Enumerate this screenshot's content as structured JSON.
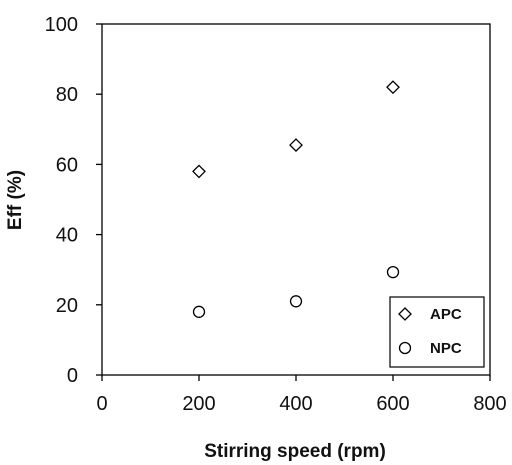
{
  "chart_data": {
    "type": "scatter",
    "xlabel": "Stirring speed (rpm)",
    "ylabel": "Eff (%)",
    "xlim": [
      0,
      800
    ],
    "ylim": [
      0,
      100
    ],
    "xticks": [
      0,
      200,
      400,
      600,
      800
    ],
    "yticks": [
      0,
      20,
      40,
      60,
      80,
      100
    ],
    "grid": false,
    "legend_position": "bottom-right",
    "series": [
      {
        "name": "APC",
        "marker": "diamond",
        "x": [
          200,
          400,
          600
        ],
        "y": [
          58,
          65.5,
          82
        ]
      },
      {
        "name": "NPC",
        "marker": "circle",
        "x": [
          200,
          400,
          600
        ],
        "y": [
          18,
          21,
          29.3
        ]
      }
    ],
    "colors": {
      "marker_stroke": "#000000",
      "axis": "#000000"
    }
  }
}
